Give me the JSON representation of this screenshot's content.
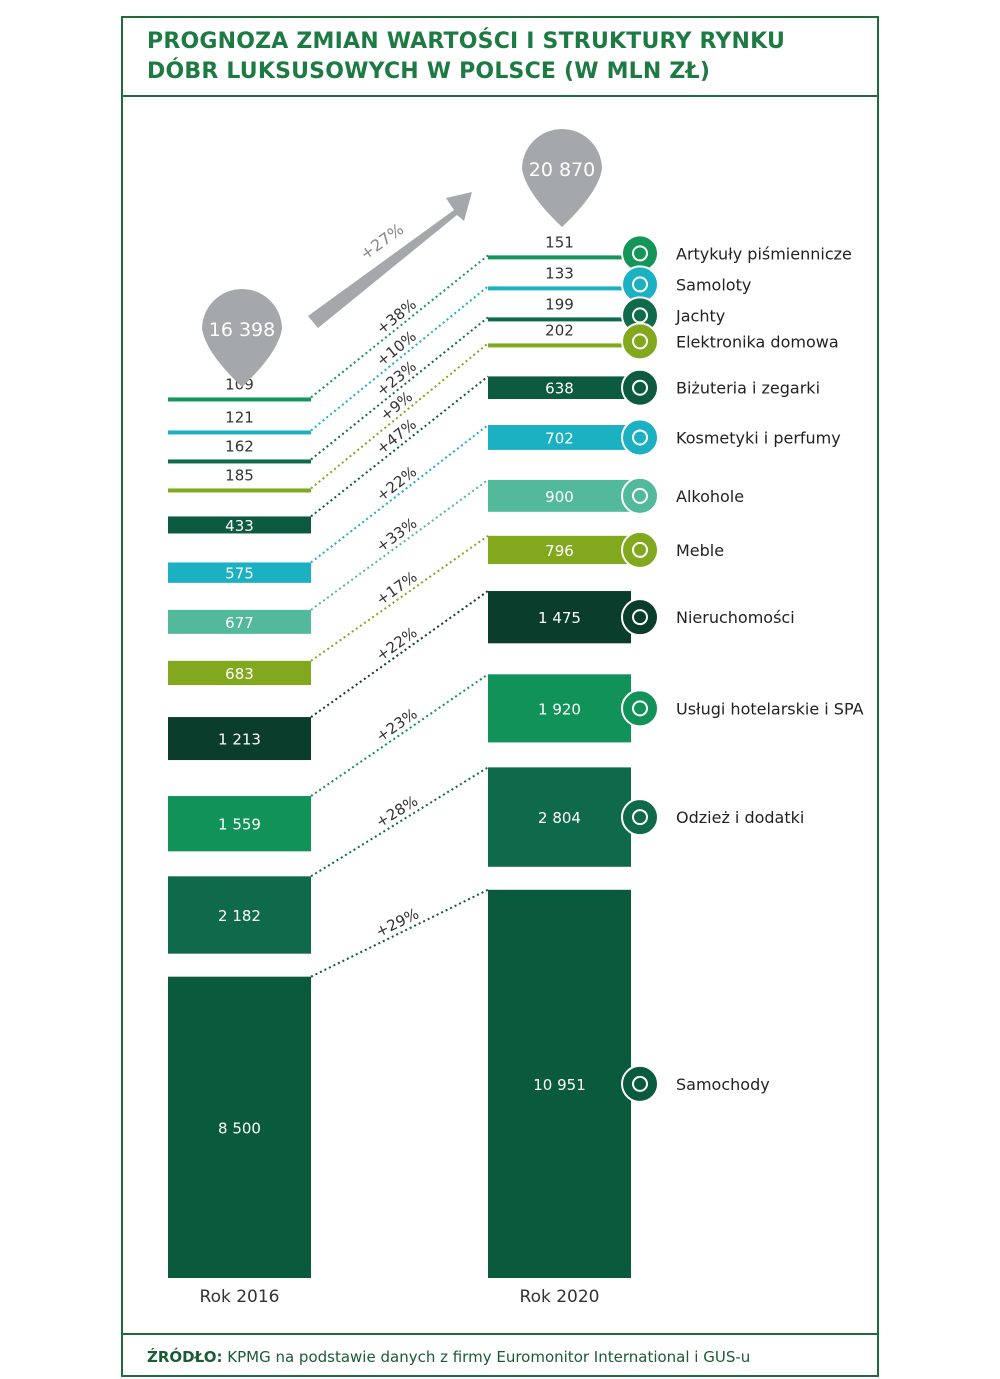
{
  "title": {
    "line1": "PROGNOZA ZMIAN WARTOŚCI I STRUKTURY RYNKU",
    "line2": "DÓBR LUKSUSOWYCH W POLSCE (W MLN ZŁ)"
  },
  "footer": {
    "label": "ŹRÓDŁO:",
    "text": " KPMG na podstawie danych z firmy Euromonitor International i GUS-u"
  },
  "chart_data": {
    "type": "bar",
    "title": "Prognoza zmian wartości i struktury rynku dóbr luksusowych w Polsce (w mln zł)",
    "years": [
      "Rok 2016",
      "Rok 2020"
    ],
    "totals": [
      "16 398",
      "20 870"
    ],
    "total_growth": "+27%",
    "series": [
      {
        "name": "Artykuły piśmiennicze",
        "v2016": 109,
        "v2020": 151,
        "l2016": "109",
        "l2020": "151",
        "growth": "+38%",
        "color": "#14965a",
        "icon": "pen-icon"
      },
      {
        "name": "Samoloty",
        "v2016": 121,
        "v2020": 133,
        "l2016": "121",
        "l2020": "133",
        "growth": "+10%",
        "color": "#1bb0c2",
        "icon": "plane-icon"
      },
      {
        "name": "Jachty",
        "v2016": 162,
        "v2020": 199,
        "l2016": "162",
        "l2020": "199",
        "growth": "+23%",
        "color": "#0f6b4a",
        "icon": "sailboat-icon"
      },
      {
        "name": "Elektronika domowa",
        "v2016": 185,
        "v2020": 202,
        "l2016": "185",
        "l2020": "202",
        "growth": "+9%",
        "color": "#82a81e",
        "icon": "usb-plug-icon"
      },
      {
        "name": "Biżuteria i zegarki",
        "v2016": 433,
        "v2020": 638,
        "l2016": "433",
        "l2020": "638",
        "growth": "+47%",
        "color": "#0c5a3f",
        "icon": "necklace-icon"
      },
      {
        "name": "Kosmetyki i perfumy",
        "v2016": 575,
        "v2020": 702,
        "l2016": "575",
        "l2020": "702",
        "growth": "+22%",
        "color": "#1bb0c2",
        "icon": "perfume-icon"
      },
      {
        "name": "Alkohole",
        "v2016": 677,
        "v2020": 900,
        "l2016": "677",
        "l2020": "900",
        "growth": "+33%",
        "color": "#52b99a",
        "icon": "ice-bucket-icon"
      },
      {
        "name": "Meble",
        "v2016": 683,
        "v2020": 796,
        "l2016": "683",
        "l2020": "796",
        "growth": "+17%",
        "color": "#82a81e",
        "icon": "sofa-icon"
      },
      {
        "name": "Nieruchomości",
        "v2016": 1213,
        "v2020": 1475,
        "l2016": "1 213",
        "l2020": "1 475",
        "growth": "+22%",
        "color": "#0a3d2c",
        "icon": "buildings-icon"
      },
      {
        "name": "Usługi hotelarskie i SPA",
        "v2016": 1559,
        "v2020": 1920,
        "l2016": "1 559",
        "l2020": "1 920",
        "growth": "+23%",
        "color": "#109258",
        "icon": "lotus-icon"
      },
      {
        "name": "Odzież i dodatki",
        "v2016": 2182,
        "v2020": 2804,
        "l2016": "2 182",
        "l2020": "2 804",
        "growth": "+28%",
        "color": "#0f6a4b",
        "icon": "dress-icon"
      },
      {
        "name": "Samochody",
        "v2016": 8500,
        "v2020": 10951,
        "l2016": "8 500",
        "l2020": "10 951",
        "growth": "+29%",
        "color": "#0a5a3e",
        "icon": "car-icon"
      }
    ]
  }
}
